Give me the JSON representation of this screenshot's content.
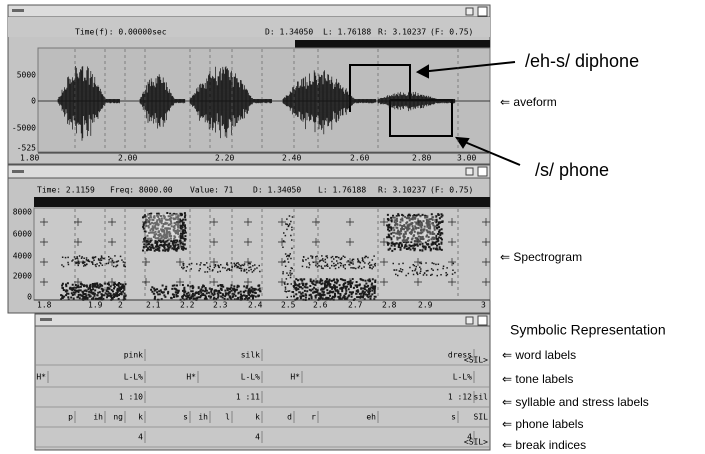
{
  "waveform_window": {
    "header_time": "Time(f):  0.00000sec",
    "header_d": "D: 1.34050",
    "header_l": "L: 1.76188",
    "header_r": "R: 3.10237",
    "header_f": "(F:     0.75)",
    "amplitude_labels": [
      "5000",
      "0",
      "-5000",
      "-525"
    ],
    "time_labels": [
      "1.80",
      "2.00",
      "2.20",
      "2.40",
      "2.60",
      "2.80",
      "3.00"
    ]
  },
  "spectrogram_window": {
    "header_time": "Time:  2.1159",
    "header_freq": "Freq:  8000.00",
    "header_value": "Value:   71",
    "header_d": "D: 1.34050",
    "header_l": "L: 1.76188",
    "header_r": "R: 3.10237",
    "header_f": "(F:     0.75)",
    "frequency_labels": [
      "8000",
      "6000",
      "4000",
      "2000",
      "0"
    ],
    "time_labels": [
      "1.8",
      "1.9",
      "2",
      "2.1",
      "2.2",
      "2.3",
      "2.4",
      "2.5",
      "2.6",
      "2.7",
      "2.8",
      "2.9",
      "3"
    ]
  },
  "label_window": {
    "word_labels": [
      "pink",
      "silk",
      "dress",
      "<SIL>"
    ],
    "tone_labels": [
      "H*",
      "L-L%",
      "H*",
      "L-L%",
      "H*",
      "L-L%"
    ],
    "syllable_labels": [
      "1 :10",
      "1 :11",
      "1 :12",
      "sil"
    ],
    "phone_labels": [
      "p",
      "ih",
      "ng",
      "k",
      "s",
      "ih",
      "l",
      "k",
      "d",
      "r",
      "eh",
      "s",
      "SIL"
    ],
    "break_indices": [
      "4",
      "4",
      "4",
      "<SIL>"
    ]
  },
  "annotations": {
    "diphone": "/eh-s/ diphone",
    "phone": "/s/ phone",
    "waveform": "⇐ aveform",
    "spectrogram": "⇐ Spectrogram",
    "symbolic_title": "Symbolic Representation",
    "word": "⇐  word labels",
    "tone": "⇐  tone labels",
    "syllable": "⇐  syllable and stress labels",
    "phone_tier": "⇐  phone labels",
    "break": "⇐  break indices"
  }
}
